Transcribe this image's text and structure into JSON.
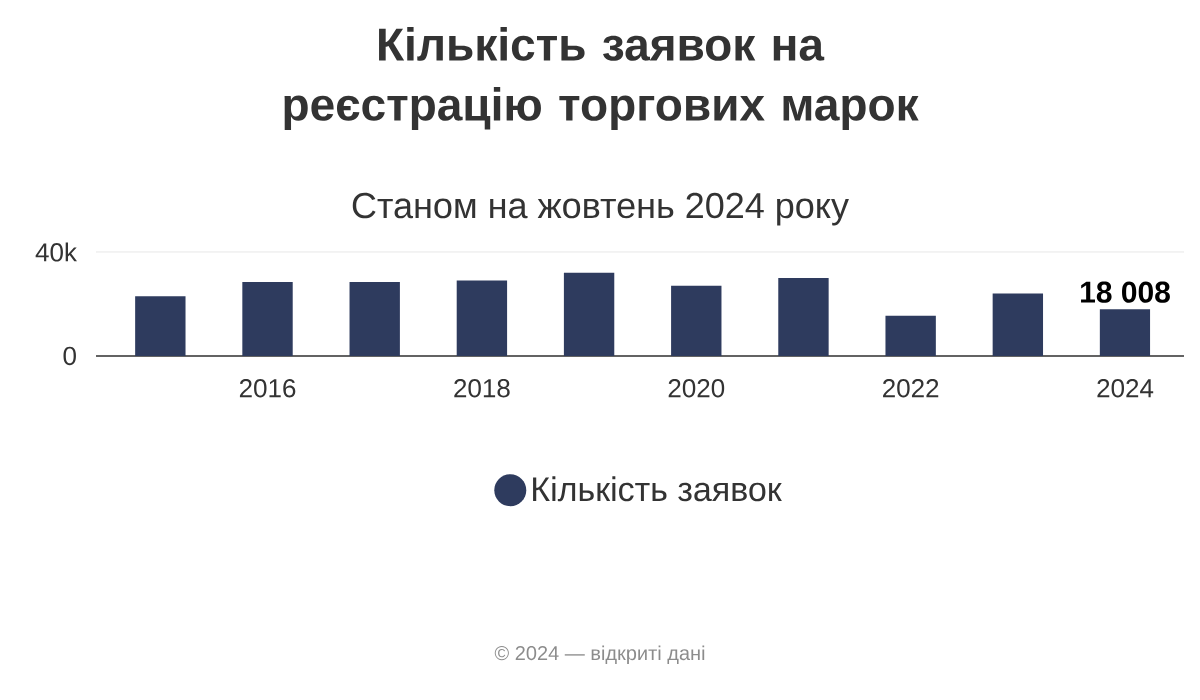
{
  "chart_data": {
    "type": "bar",
    "title": "Кількість заявок на реєстрацію торгових марок",
    "subtitle": "Станом на жовтень 2024 року",
    "x": [
      2015,
      2016,
      2017,
      2018,
      2019,
      2020,
      2021,
      2022,
      2023,
      2024
    ],
    "series": [
      {
        "name": "Кількість заявок",
        "color": "#2e3b5e",
        "values": [
          23000,
          28500,
          28500,
          29000,
          32000,
          27000,
          30000,
          15500,
          24000,
          18008
        ],
        "value_labels": [
          null,
          null,
          null,
          null,
          null,
          null,
          null,
          null,
          null,
          "18 008"
        ]
      }
    ],
    "xlim": [
      2014.4,
      2024.55
    ],
    "xticks": [
      2016,
      2018,
      2020,
      2022,
      2024
    ],
    "ylim": [
      0,
      40000
    ],
    "yticks": [
      {
        "value": 0,
        "label": "0"
      },
      {
        "value": 40000,
        "label": "40k"
      }
    ],
    "grid": "y",
    "legend": "bottom",
    "annotations": [
      "© 2024 — відкриті дані"
    ]
  }
}
